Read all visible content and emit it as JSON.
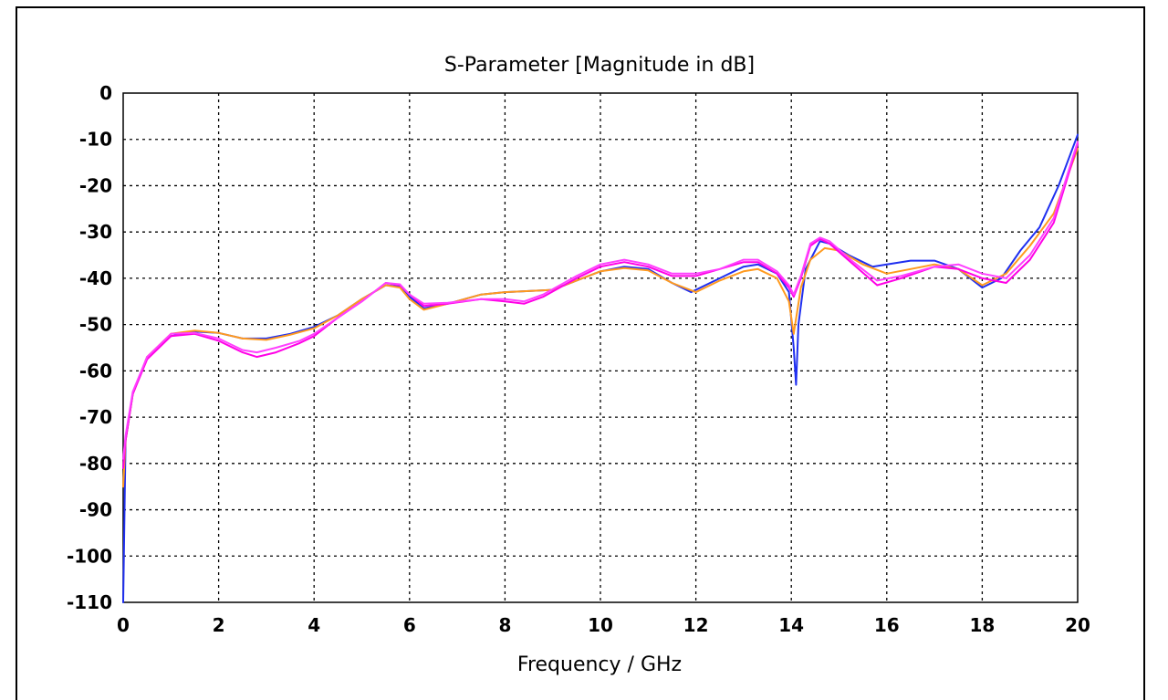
{
  "chart_data": {
    "type": "line",
    "title": "S-Parameter [Magnitude in dB]",
    "xlabel": "Frequency / GHz",
    "ylabel": "",
    "xlim": [
      0,
      20
    ],
    "ylim": [
      -110,
      0
    ],
    "xticks": [
      0,
      2,
      4,
      6,
      8,
      10,
      12,
      14,
      16,
      18,
      20
    ],
    "yticks": [
      0,
      -10,
      -20,
      -30,
      -40,
      -50,
      -60,
      -70,
      -80,
      -90,
      -100,
      -110
    ],
    "grid": true,
    "legend": "none",
    "series": [
      {
        "color": "#1f2ff0",
        "points": [
          [
            0,
            -110
          ],
          [
            0.05,
            -75
          ],
          [
            0.2,
            -65
          ],
          [
            0.5,
            -57
          ],
          [
            1,
            -52.5
          ],
          [
            1.5,
            -51.5
          ],
          [
            2,
            -51.8
          ],
          [
            2.5,
            -53
          ],
          [
            3,
            -53
          ],
          [
            3.5,
            -52
          ],
          [
            4,
            -50.5
          ],
          [
            4.5,
            -48
          ],
          [
            5,
            -44.5
          ],
          [
            5.5,
            -41.5
          ],
          [
            5.8,
            -41.8
          ],
          [
            6,
            -44
          ],
          [
            6.3,
            -46.5
          ],
          [
            6.8,
            -45.5
          ],
          [
            7.5,
            -43.5
          ],
          [
            8,
            -43
          ],
          [
            9,
            -42.5
          ],
          [
            9.5,
            -40.5
          ],
          [
            10,
            -38.5
          ],
          [
            10.5,
            -37.5
          ],
          [
            11,
            -38
          ],
          [
            11.5,
            -41
          ],
          [
            11.9,
            -43
          ],
          [
            12.5,
            -40
          ],
          [
            13,
            -37.5
          ],
          [
            13.3,
            -37
          ],
          [
            13.7,
            -39
          ],
          [
            13.95,
            -43
          ],
          [
            14.05,
            -55
          ],
          [
            14.1,
            -63
          ],
          [
            14.15,
            -50
          ],
          [
            14.3,
            -38
          ],
          [
            14.6,
            -32
          ],
          [
            14.8,
            -32.5
          ],
          [
            15.2,
            -35
          ],
          [
            15.7,
            -37.5
          ],
          [
            16,
            -37
          ],
          [
            16.5,
            -36.2
          ],
          [
            17,
            -36.2
          ],
          [
            17.5,
            -38
          ],
          [
            18,
            -42
          ],
          [
            18.4,
            -40
          ],
          [
            18.8,
            -34
          ],
          [
            19.2,
            -29
          ],
          [
            19.6,
            -20
          ],
          [
            20,
            -9
          ]
        ]
      },
      {
        "color": "#ff9a1f",
        "points": [
          [
            0,
            -85
          ],
          [
            0.05,
            -75
          ],
          [
            0.2,
            -65
          ],
          [
            0.5,
            -57
          ],
          [
            1,
            -52
          ],
          [
            1.5,
            -51.3
          ],
          [
            2,
            -51.8
          ],
          [
            2.5,
            -53
          ],
          [
            3,
            -53.3
          ],
          [
            3.5,
            -52.2
          ],
          [
            4,
            -50.8
          ],
          [
            4.5,
            -48
          ],
          [
            5,
            -44.5
          ],
          [
            5.5,
            -41.5
          ],
          [
            5.8,
            -42
          ],
          [
            6,
            -44.5
          ],
          [
            6.3,
            -46.8
          ],
          [
            6.8,
            -45.5
          ],
          [
            7.5,
            -43.5
          ],
          [
            8,
            -43
          ],
          [
            9,
            -42.5
          ],
          [
            9.5,
            -40.5
          ],
          [
            10,
            -38.5
          ],
          [
            10.5,
            -37.8
          ],
          [
            11,
            -38.3
          ],
          [
            11.5,
            -41
          ],
          [
            12,
            -43
          ],
          [
            12.5,
            -40.5
          ],
          [
            13,
            -38.5
          ],
          [
            13.3,
            -38
          ],
          [
            13.7,
            -40
          ],
          [
            13.95,
            -45
          ],
          [
            14.05,
            -52
          ],
          [
            14.2,
            -42
          ],
          [
            14.4,
            -36
          ],
          [
            14.7,
            -33.5
          ],
          [
            15,
            -34
          ],
          [
            15.5,
            -37
          ],
          [
            16,
            -39
          ],
          [
            16.5,
            -38
          ],
          [
            17,
            -37
          ],
          [
            17.5,
            -38
          ],
          [
            18,
            -41.5
          ],
          [
            18.5,
            -39
          ],
          [
            19,
            -33
          ],
          [
            19.5,
            -26
          ],
          [
            20,
            -12
          ]
        ]
      },
      {
        "color": "#ff00e6",
        "points": [
          [
            0,
            -81
          ],
          [
            0.05,
            -75
          ],
          [
            0.2,
            -65
          ],
          [
            0.5,
            -57.5
          ],
          [
            1,
            -52.5
          ],
          [
            1.5,
            -52
          ],
          [
            2,
            -53.5
          ],
          [
            2.5,
            -56
          ],
          [
            2.8,
            -57
          ],
          [
            3.2,
            -56
          ],
          [
            3.7,
            -54
          ],
          [
            4,
            -52.5
          ],
          [
            4.5,
            -48.5
          ],
          [
            5,
            -45
          ],
          [
            5.5,
            -41
          ],
          [
            5.8,
            -41.5
          ],
          [
            6,
            -43.5
          ],
          [
            6.3,
            -46
          ],
          [
            6.8,
            -45.5
          ],
          [
            7.5,
            -44.5
          ],
          [
            8,
            -45
          ],
          [
            8.4,
            -45.5
          ],
          [
            8.8,
            -44
          ],
          [
            9.5,
            -40
          ],
          [
            10,
            -37.5
          ],
          [
            10.5,
            -36.5
          ],
          [
            11,
            -37.5
          ],
          [
            11.5,
            -39.5
          ],
          [
            12,
            -39.5
          ],
          [
            12.5,
            -38
          ],
          [
            13,
            -36.5
          ],
          [
            13.3,
            -36.5
          ],
          [
            13.7,
            -39
          ],
          [
            13.95,
            -42
          ],
          [
            14.05,
            -44
          ],
          [
            14.2,
            -40
          ],
          [
            14.4,
            -33
          ],
          [
            14.6,
            -31.5
          ],
          [
            14.8,
            -32.5
          ],
          [
            15.3,
            -37
          ],
          [
            15.8,
            -41.5
          ],
          [
            16.3,
            -40
          ],
          [
            17,
            -37.5
          ],
          [
            17.5,
            -38
          ],
          [
            18,
            -40
          ],
          [
            18.5,
            -41
          ],
          [
            19,
            -36
          ],
          [
            19.5,
            -28
          ],
          [
            20,
            -11
          ]
        ]
      },
      {
        "color": "#ff40ff",
        "points": [
          [
            0,
            -79
          ],
          [
            0.05,
            -74
          ],
          [
            0.2,
            -64.5
          ],
          [
            0.5,
            -57
          ],
          [
            1,
            -52
          ],
          [
            1.5,
            -51.8
          ],
          [
            2,
            -53
          ],
          [
            2.5,
            -55.5
          ],
          [
            2.8,
            -56
          ],
          [
            3.2,
            -55
          ],
          [
            3.7,
            -53.5
          ],
          [
            4,
            -52
          ],
          [
            4.5,
            -48.5
          ],
          [
            5,
            -45
          ],
          [
            5.5,
            -41
          ],
          [
            5.8,
            -41.3
          ],
          [
            6,
            -43.5
          ],
          [
            6.3,
            -45.5
          ],
          [
            6.8,
            -45.3
          ],
          [
            7.5,
            -44.5
          ],
          [
            8,
            -44.5
          ],
          [
            8.4,
            -45
          ],
          [
            8.8,
            -43.5
          ],
          [
            9.5,
            -39.5
          ],
          [
            10,
            -37
          ],
          [
            10.5,
            -36
          ],
          [
            11,
            -37
          ],
          [
            11.5,
            -39
          ],
          [
            12,
            -39
          ],
          [
            12.5,
            -38
          ],
          [
            13,
            -36
          ],
          [
            13.3,
            -36
          ],
          [
            13.7,
            -38.5
          ],
          [
            13.95,
            -41.5
          ],
          [
            14.05,
            -43.5
          ],
          [
            14.2,
            -39.5
          ],
          [
            14.4,
            -32.5
          ],
          [
            14.6,
            -31.2
          ],
          [
            14.8,
            -32
          ],
          [
            15.3,
            -36.5
          ],
          [
            15.8,
            -40.5
          ],
          [
            16.3,
            -39.5
          ],
          [
            17,
            -37.5
          ],
          [
            17.5,
            -37
          ],
          [
            18,
            -39
          ],
          [
            18.5,
            -40
          ],
          [
            19,
            -35
          ],
          [
            19.5,
            -27
          ],
          [
            20,
            -10.5
          ]
        ]
      }
    ]
  }
}
